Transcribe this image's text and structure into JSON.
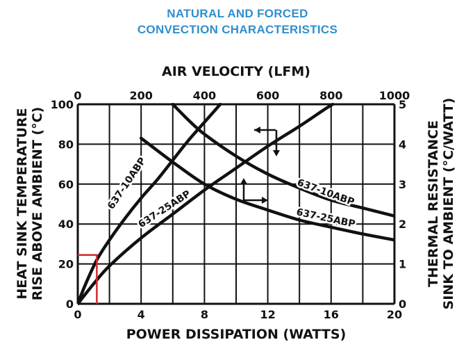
{
  "chart_data": {
    "type": "line",
    "title": [
      "NATURAL AND FORCED",
      "CONVECTION CHARACTERISTICS"
    ],
    "axes": {
      "bottom": {
        "label": "POWER DISSIPATION (WATTS)",
        "range": [
          0,
          20
        ],
        "ticks": [
          0,
          4,
          8,
          12,
          16,
          20
        ]
      },
      "top": {
        "label": "AIR VELOCITY (LFM)",
        "range": [
          0,
          1000
        ],
        "ticks": [
          0,
          200,
          400,
          600,
          800,
          1000
        ]
      },
      "left": {
        "label_lines": [
          "HEAT SINK TEMPERATURE",
          "RISE ABOVE AMBIENT (°C)"
        ],
        "range": [
          0,
          100
        ],
        "ticks": [
          0,
          20,
          40,
          60,
          80,
          100
        ]
      },
      "right": {
        "label_lines": [
          "THERMAL RESISTANCE",
          "SINK TO AMBIENT (°C/WATT)"
        ],
        "range": [
          0,
          5
        ],
        "ticks": [
          0,
          1,
          2,
          3,
          4,
          5
        ]
      }
    },
    "grid": true,
    "series": [
      {
        "name": "637-10ABP",
        "x_axis": "POWER DISSIPATION (WATTS)",
        "y_axis": "HEAT SINK TEMPERATURE RISE ABOVE AMBIENT (°C)",
        "points": [
          [
            0,
            0
          ],
          [
            0.5,
            10
          ],
          [
            1.2,
            22
          ],
          [
            2,
            32
          ],
          [
            3,
            43
          ],
          [
            4,
            53
          ],
          [
            5,
            62
          ],
          [
            6,
            72
          ],
          [
            7,
            82
          ],
          [
            8,
            91
          ],
          [
            9,
            100
          ]
        ]
      },
      {
        "name": "637-25ABP",
        "x_axis": "POWER DISSIPATION (WATTS)",
        "y_axis": "HEAT SINK TEMPERATURE RISE ABOVE AMBIENT (°C)",
        "points": [
          [
            0,
            0
          ],
          [
            1,
            10
          ],
          [
            2,
            19
          ],
          [
            4,
            33
          ],
          [
            6,
            45
          ],
          [
            8,
            57
          ],
          [
            10,
            68
          ],
          [
            12,
            79
          ],
          [
            14,
            89
          ],
          [
            15.5,
            97
          ],
          [
            16.1,
            100
          ]
        ]
      },
      {
        "name": "637-10ABP",
        "x_axis": "AIR VELOCITY (LFM)",
        "y_axis": "THERMAL RESISTANCE SINK TO AMBIENT (°C/WATT)",
        "points": [
          [
            300,
            5.0
          ],
          [
            350,
            4.6
          ],
          [
            400,
            4.25
          ],
          [
            500,
            3.7
          ],
          [
            600,
            3.25
          ],
          [
            700,
            2.9
          ],
          [
            800,
            2.6
          ],
          [
            900,
            2.4
          ],
          [
            1000,
            2.2
          ]
        ]
      },
      {
        "name": "637-25ABP",
        "x_axis": "AIR VELOCITY (LFM)",
        "y_axis": "THERMAL RESISTANCE SINK TO AMBIENT (°C/WATT)",
        "points": [
          [
            200,
            4.15
          ],
          [
            300,
            3.55
          ],
          [
            400,
            3.0
          ],
          [
            500,
            2.62
          ],
          [
            600,
            2.35
          ],
          [
            700,
            2.1
          ],
          [
            800,
            1.92
          ],
          [
            900,
            1.75
          ],
          [
            1000,
            1.6
          ]
        ]
      }
    ],
    "annotations": {
      "highlight_lines": {
        "color": "#d62828",
        "x_watts": 1.2,
        "y_rise_c": 24.5
      },
      "arrows": [
        {
          "points_to": "AIR VELOCITY (LFM)",
          "direction": "left"
        },
        {
          "points_to": "THERMAL RESISTANCE SINK TO AMBIENT (°C/WATT)",
          "direction": "down"
        },
        {
          "points_to": "HEAT SINK TEMPERATURE RISE ABOVE AMBIENT (°C)",
          "direction": "up"
        },
        {
          "points_to": "POWER DISSIPATION (WATTS)",
          "direction": "right"
        }
      ]
    }
  }
}
